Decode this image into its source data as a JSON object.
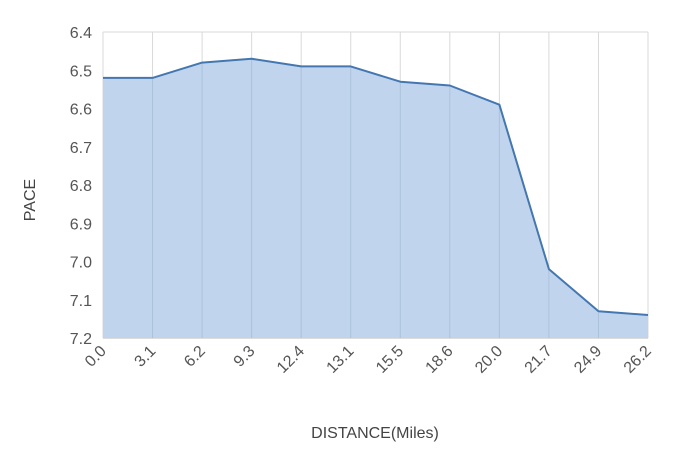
{
  "chart_data": {
    "type": "area",
    "title": "",
    "xlabel": "DISTANCE(Miles)",
    "ylabel": "PACE",
    "categories": [
      "0.0",
      "3.1",
      "6.2",
      "9.3",
      "12.4",
      "13.1",
      "15.5",
      "18.6",
      "20.0",
      "21.7",
      "24.9",
      "26.2"
    ],
    "series": [
      {
        "values": [
          6.52,
          6.52,
          6.48,
          6.47,
          6.49,
          6.49,
          6.53,
          6.54,
          6.59,
          7.02,
          7.13,
          7.14
        ]
      }
    ],
    "yticks": [
      "6.4",
      "6.5",
      "6.6",
      "6.7",
      "6.8",
      "6.9",
      "7.0",
      "7.1",
      "7.2"
    ],
    "ylim": [
      6.4,
      7.2
    ],
    "y_inverted": true,
    "grid": "vertical",
    "colors": {
      "fill": "#bdd3ec",
      "line": "#4477b0",
      "grid": "#d9d9d9",
      "axis": "#b8b8b8"
    }
  }
}
